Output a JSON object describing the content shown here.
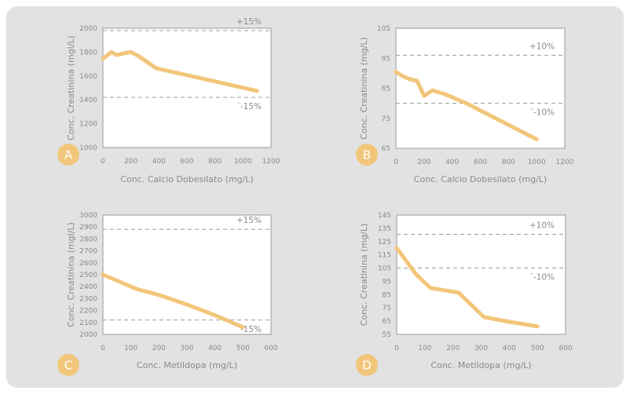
{
  "colors": {
    "line": "#f2c67a",
    "badge": "#f2c67a",
    "panel": "#e2e2e3",
    "plot_bg": "#ffffff",
    "plot_border": "#9a9a9a",
    "ref_line": "#9a9a9a",
    "text": "#8a8a8a"
  },
  "chart_data": [
    {
      "id": "A",
      "badge": "A",
      "type": "line",
      "title": "",
      "xlabel": "Conc. Calcio Dobesilato (mg/L)",
      "ylabel": "Conc. Creatinina (mgl/L)",
      "xlim": [
        0,
        1200
      ],
      "ylim": [
        1000,
        2000
      ],
      "xticks": [
        "0",
        "200",
        "400",
        "600",
        "800",
        "1000",
        "1200"
      ],
      "yticks": [
        "1000",
        "1200",
        "1400",
        "1600",
        "1800",
        "2000"
      ],
      "grid": false,
      "x": [
        0,
        60,
        100,
        150,
        200,
        250,
        300,
        380,
        1100
      ],
      "y": [
        1745,
        1800,
        1775,
        1790,
        1800,
        1770,
        1730,
        1665,
        1475
      ],
      "reference_lines": [
        {
          "label": "+15%",
          "value": 1980
        },
        {
          "label": "´-15%",
          "value": 1420
        }
      ]
    },
    {
      "id": "B",
      "badge": "B",
      "type": "line",
      "title": "",
      "xlabel": "Conc. Calcio Dobesilato (mg/L)",
      "ylabel": "Conc. Creatinina (mg/L)",
      "xlim": [
        0,
        1200
      ],
      "ylim": [
        65,
        105
      ],
      "xticks": [
        "0",
        "200",
        "400",
        "600",
        "800",
        "1000",
        "1200"
      ],
      "yticks": [
        "65",
        "75",
        "85",
        "95",
        "105"
      ],
      "grid": false,
      "x": [
        0,
        50,
        100,
        150,
        200,
        260,
        350,
        500,
        1000
      ],
      "y": [
        90.5,
        89,
        88,
        87.5,
        82.5,
        84.3,
        83,
        80,
        68
      ],
      "reference_lines": [
        {
          "label": "+10%",
          "value": 96
        },
        {
          "label": "´-10%",
          "value": 80
        }
      ]
    },
    {
      "id": "C",
      "badge": "C",
      "type": "line",
      "title": "",
      "xlabel": "Conc. Metildopa (mg/L)",
      "ylabel": "Conc. Creatinina (mgl/L)",
      "xlim": [
        0,
        600
      ],
      "ylim": [
        2000,
        3000
      ],
      "xticks": [
        "0",
        "100",
        "200",
        "300",
        "400",
        "500",
        "600"
      ],
      "yticks": [
        "2000",
        "2100",
        "2200",
        "2300",
        "2400",
        "2500",
        "2600",
        "2700",
        "2800",
        "2900",
        "3000"
      ],
      "grid": false,
      "x": [
        0,
        60,
        120,
        200,
        300,
        400,
        500
      ],
      "y": [
        2500,
        2440,
        2380,
        2330,
        2250,
        2160,
        2060
      ],
      "reference_lines": [
        {
          "label": "+15%",
          "value": 2880
        },
        {
          "label": "´-15%",
          "value": 2120
        }
      ]
    },
    {
      "id": "D",
      "badge": "D",
      "type": "line",
      "title": "",
      "xlabel": "Conc. Metildopa (mg/L)",
      "ylabel": "Conc. Creatinina (mg/L)",
      "xlim": [
        0,
        600
      ],
      "ylim": [
        55,
        145
      ],
      "xticks": [
        "0",
        "100",
        "200",
        "300",
        "400",
        "500",
        "600"
      ],
      "yticks": [
        "55",
        "65",
        "75",
        "85",
        "95",
        "105",
        "115",
        "125",
        "135",
        "145"
      ],
      "grid": false,
      "x": [
        0,
        70,
        120,
        220,
        310,
        400,
        500
      ],
      "y": [
        120,
        100,
        90,
        86.5,
        68,
        64.5,
        61
      ],
      "reference_lines": [
        {
          "label": "+10%",
          "value": 130.5
        },
        {
          "label": "´-10%",
          "value": 105
        }
      ]
    }
  ]
}
